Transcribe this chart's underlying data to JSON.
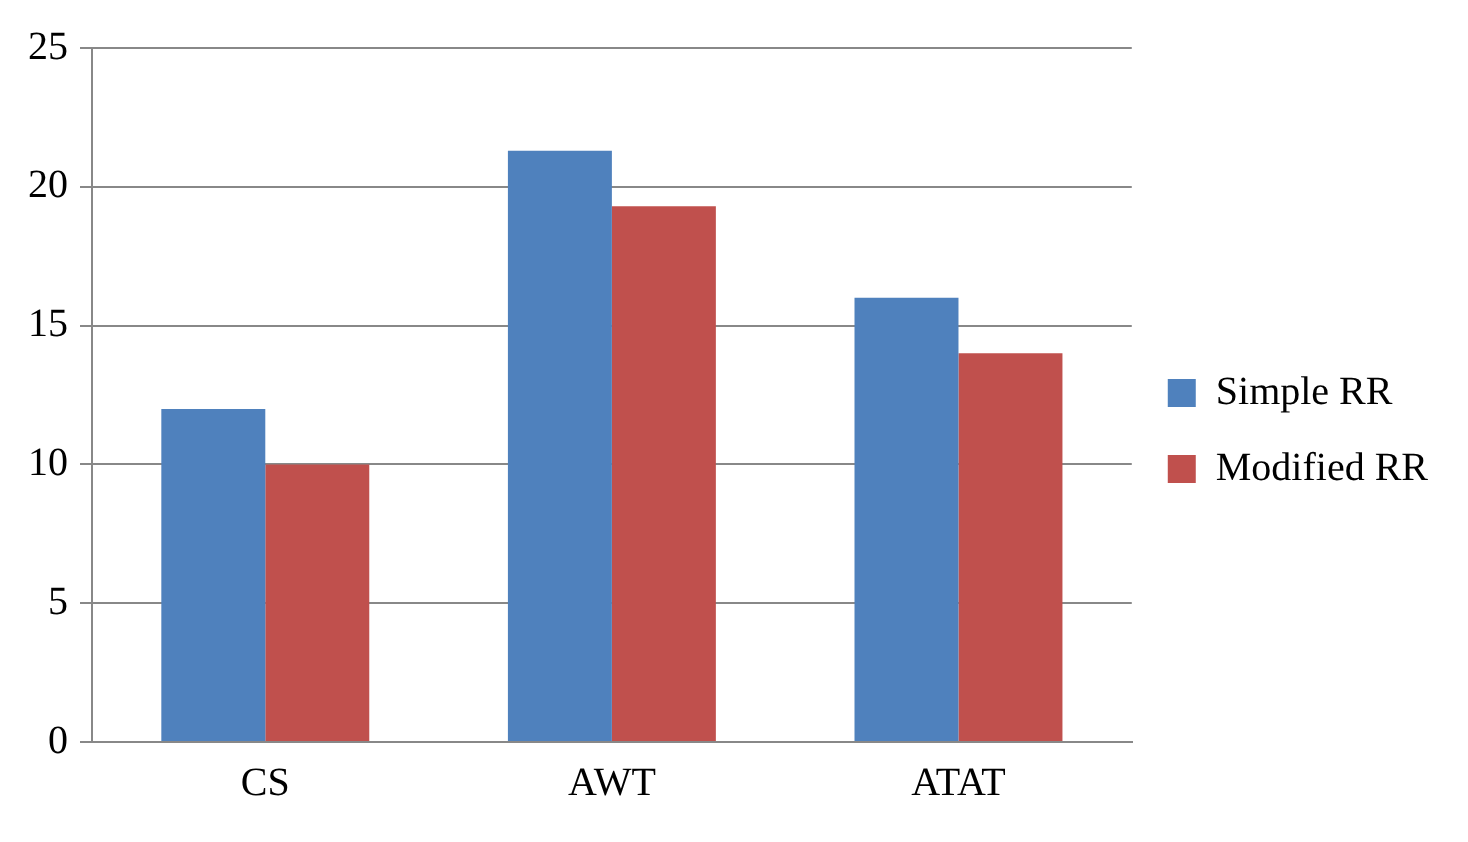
{
  "chart_data": {
    "type": "bar",
    "categories": [
      "CS",
      "AWT",
      "ATAT"
    ],
    "series": [
      {
        "name": "Simple RR",
        "color": "#4f81bd",
        "values": [
          12,
          21.3,
          16
        ]
      },
      {
        "name": "Modified RR",
        "color": "#c0504d",
        "values": [
          10,
          19.3,
          14
        ]
      }
    ],
    "ylim": [
      0,
      25
    ],
    "yticks": [
      0,
      5,
      10,
      15,
      20,
      25
    ],
    "grid": "y",
    "legend": "right"
  }
}
